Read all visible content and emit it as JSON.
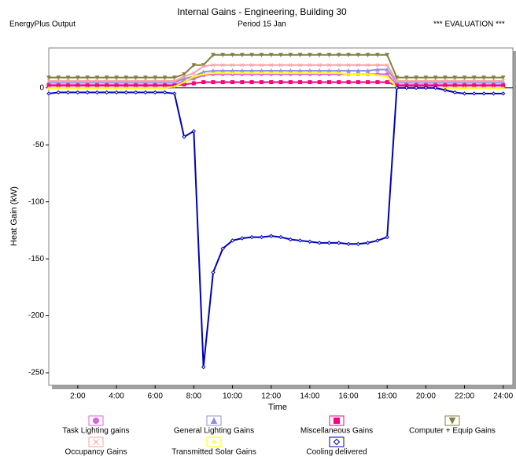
{
  "chart_data": {
    "type": "line",
    "title": "Internal Gains - Engineering, Building 30",
    "subtitle": "Period 15 Jan",
    "source": "EnergyPlus Output",
    "watermark": "*** EVALUATION ***",
    "xlabel": "Time",
    "ylabel": "Heat Gain (kW)",
    "x": [
      0.5,
      1,
      1.5,
      2,
      2.5,
      3,
      3.5,
      4,
      4.5,
      5,
      5.5,
      6,
      6.5,
      7,
      7.5,
      8,
      8.5,
      9,
      9.5,
      10,
      10.5,
      11,
      11.5,
      12,
      12.5,
      13,
      13.5,
      14,
      14.5,
      15,
      15.5,
      16,
      16.5,
      17,
      17.5,
      18,
      18.5,
      19,
      19.5,
      20,
      20.5,
      21,
      21.5,
      22,
      22.5,
      23,
      23.5,
      24
    ],
    "xlim": [
      0.5,
      24.5
    ],
    "xticks": [
      {
        "value": 2,
        "label": "2:00"
      },
      {
        "value": 4,
        "label": "4:00"
      },
      {
        "value": 6,
        "label": "6:00"
      },
      {
        "value": 8,
        "label": "8:00"
      },
      {
        "value": 10,
        "label": "10:00"
      },
      {
        "value": 12,
        "label": "12:00"
      },
      {
        "value": 14,
        "label": "14:00"
      },
      {
        "value": 16,
        "label": "16:00"
      },
      {
        "value": 18,
        "label": "18:00"
      },
      {
        "value": 20,
        "label": "20:00"
      },
      {
        "value": 22,
        "label": "22:00"
      },
      {
        "value": 24,
        "label": "24:00"
      }
    ],
    "ylim": [
      -261,
      35
    ],
    "yticks": [
      0,
      -50,
      -100,
      -150,
      -200,
      -250
    ],
    "series": [
      {
        "name": "Task Lighting gains",
        "color": "#e060e0",
        "marker": "circle",
        "values": [
          3,
          3,
          3,
          3,
          3,
          3,
          3,
          3,
          3,
          3,
          3,
          3,
          3,
          3,
          6,
          8,
          11,
          12,
          12,
          12,
          12,
          12,
          12,
          12,
          12,
          12,
          12,
          12,
          12,
          12,
          12,
          12,
          12,
          12,
          12,
          12,
          3,
          3,
          3,
          3,
          3,
          3,
          3,
          3,
          3,
          3,
          3,
          3
        ]
      },
      {
        "name": "General Lighting Gains",
        "color": "#9090e0",
        "marker": "triangle",
        "values": [
          5,
          5,
          5,
          5,
          5,
          5,
          5,
          5,
          5,
          5,
          5,
          5,
          5,
          5,
          8,
          10,
          14,
          15,
          15,
          15,
          15,
          15,
          15,
          15,
          15,
          15,
          15,
          15,
          15,
          15,
          15,
          15,
          15,
          15,
          16,
          16,
          5,
          5,
          5,
          5,
          5,
          5,
          5,
          5,
          5,
          5,
          5,
          5
        ]
      },
      {
        "name": "Miscellaneous Gains",
        "color": "#ff0080",
        "marker": "square",
        "values": [
          2,
          2,
          2,
          2,
          2,
          2,
          2,
          2,
          2,
          2,
          2,
          2,
          2,
          2,
          3,
          4,
          5,
          5,
          5,
          5,
          5,
          5,
          5,
          5,
          5,
          5,
          5,
          5,
          5,
          5,
          5,
          5,
          5,
          5,
          5,
          5,
          2,
          2,
          2,
          2,
          2,
          2,
          2,
          2,
          2,
          2,
          2,
          2
        ]
      },
      {
        "name": "Computer + Equip Gains",
        "color": "#808040",
        "marker": "down-triangle",
        "values": [
          9,
          9,
          9,
          9,
          9,
          9,
          9,
          9,
          9,
          9,
          9,
          9,
          9,
          9,
          12,
          20,
          20,
          29,
          29,
          29,
          29,
          29,
          29,
          29,
          29,
          29,
          29,
          29,
          29,
          29,
          29,
          29,
          29,
          29,
          29,
          29,
          9,
          9,
          9,
          9,
          9,
          9,
          9,
          9,
          9,
          9,
          9,
          9
        ]
      },
      {
        "name": "Occupancy Gains",
        "color": "#ffa0a0",
        "marker": "cross",
        "values": [
          6,
          6,
          6,
          6,
          6,
          6,
          6,
          6,
          6,
          6,
          6,
          6,
          6,
          6,
          10,
          13,
          19,
          20,
          20,
          20,
          20,
          20,
          20,
          20,
          20,
          20,
          20,
          20,
          20,
          20,
          20,
          20,
          20,
          20,
          20,
          20,
          6,
          6,
          6,
          6,
          6,
          6,
          6,
          6,
          6,
          6,
          6,
          6
        ]
      },
      {
        "name": "Transmitted Solar Gains",
        "color": "#ffff00",
        "marker": "plus",
        "values": [
          0,
          0,
          0,
          0,
          0,
          0,
          0,
          0,
          0,
          0,
          0,
          0,
          0,
          1,
          5,
          10,
          12,
          13,
          13,
          13,
          13,
          13,
          13,
          13,
          13,
          13,
          13,
          13,
          13,
          13,
          13,
          12,
          12,
          12,
          11,
          10,
          0,
          0,
          0,
          0,
          0,
          0,
          0,
          0,
          0,
          0,
          0,
          0
        ]
      },
      {
        "name": "Cooling delivered",
        "color": "#0000c0",
        "marker": "diamond",
        "values": [
          -5,
          -4,
          -4,
          -4,
          -4,
          -4,
          -4,
          -4,
          -4,
          -4,
          -4,
          -4,
          -4,
          -5,
          -43,
          -38,
          -245,
          -162,
          -141,
          -134,
          -132,
          -131,
          -131,
          -130,
          -131,
          -133,
          -134,
          -135,
          -136,
          -136,
          -136,
          -137,
          -137,
          -136,
          -134,
          -131,
          0,
          0,
          0,
          0,
          0,
          -2,
          -4,
          -5,
          -5,
          -5,
          -5,
          -5
        ]
      }
    ]
  }
}
